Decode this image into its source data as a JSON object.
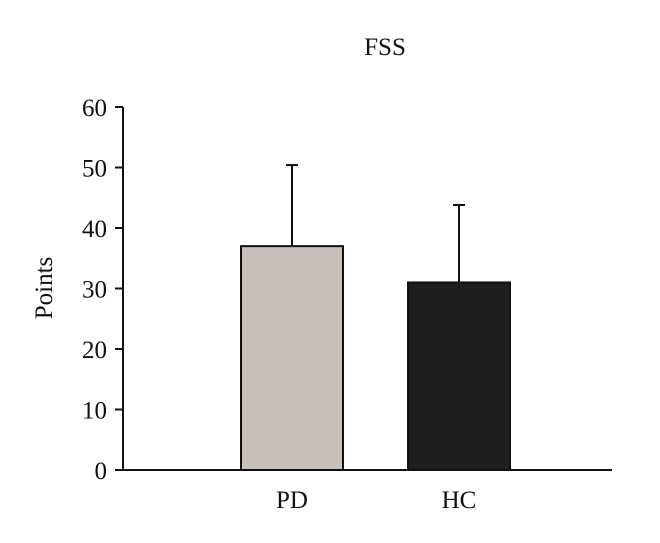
{
  "chart_data": {
    "type": "bar",
    "title": "FSS",
    "ylabel": "Points",
    "xlabel": "",
    "categories": [
      "PD",
      "HC"
    ],
    "values": [
      37,
      31
    ],
    "errors": [
      13.4,
      12.8
    ],
    "ylim": [
      0,
      60
    ],
    "yticks": [
      0,
      10,
      20,
      30,
      40,
      50,
      60
    ],
    "ytick_labels": [
      "0",
      "10",
      "20",
      "30",
      "40",
      "50",
      "60"
    ],
    "bar_colors": [
      "#c8c0bb",
      "#1c1f1b"
    ],
    "grid": false,
    "legend": "none"
  }
}
